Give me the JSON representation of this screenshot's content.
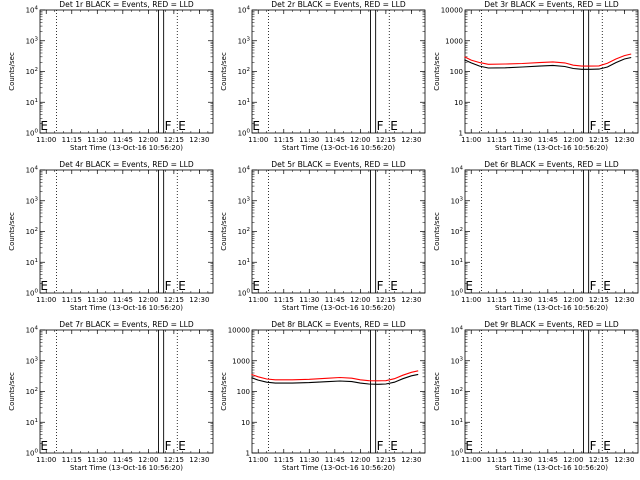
{
  "chart_data": [
    {
      "type": "line",
      "detector": "Det 1r",
      "title": "Det 1r BLACK = Events, RED = LLD",
      "xlabel": "Start Time (13-Oct-16 10:56:20)",
      "ylabel": "Counts/sec",
      "xlim": [
        "10:56:20",
        "12:38:00"
      ],
      "ylim": [
        1,
        10000
      ],
      "yscale": "log",
      "xticks": [
        "11:00",
        "11:15",
        "11:30",
        "11:45",
        "12:00",
        "12:15",
        "12:30"
      ],
      "yticks": [
        "10^0",
        "10^1",
        "10^2",
        "10^3",
        "10^4"
      ],
      "vlines_dotted": [
        "11:06",
        "12:17"
      ],
      "vlines_solid": [
        "12:06",
        "12:09"
      ],
      "markers": [
        {
          "text": "E",
          "x": "10:56"
        },
        {
          "text": "F",
          "x": "12:09"
        },
        {
          "text": "E",
          "x": "12:17"
        }
      ],
      "series": []
    },
    {
      "type": "line",
      "detector": "Det 2r",
      "title": "Det 2r BLACK = Events, RED = LLD",
      "xlabel": "Start Time (13-Oct-16 10:56:20)",
      "ylabel": "Counts/sec",
      "xlim": [
        "10:56:20",
        "12:38:00"
      ],
      "ylim": [
        1,
        10000
      ],
      "yscale": "log",
      "xticks": [
        "11:00",
        "11:15",
        "11:30",
        "11:45",
        "12:00",
        "12:15",
        "12:30"
      ],
      "yticks": [
        "10^0",
        "10^1",
        "10^2",
        "10^3",
        "10^4"
      ],
      "vlines_dotted": [
        "11:06",
        "12:17"
      ],
      "vlines_solid": [
        "12:06",
        "12:09"
      ],
      "markers": [
        {
          "text": "E",
          "x": "10:56"
        },
        {
          "text": "F",
          "x": "12:09"
        },
        {
          "text": "E",
          "x": "12:17"
        }
      ],
      "series": []
    },
    {
      "type": "line",
      "detector": "Det 3r",
      "title": "Det 3r BLACK = Events, RED = LLD",
      "xlabel": "Start Time (13-Oct-16 10:56:20)",
      "ylabel": "Counts/sec",
      "xlim": [
        "10:56:20",
        "12:38:00"
      ],
      "ylim": [
        1,
        10000
      ],
      "yscale": "log",
      "xticks": [
        "11:00",
        "11:15",
        "11:30",
        "11:45",
        "12:00",
        "12:15",
        "12:30"
      ],
      "yticks": [
        "1",
        "10",
        "100",
        "1000",
        "10000"
      ],
      "vlines_dotted": [
        "11:06",
        "12:17"
      ],
      "vlines_solid": [
        "12:06",
        "12:09"
      ],
      "markers": [
        {
          "text": "F",
          "x": "12:09"
        },
        {
          "text": "E",
          "x": "12:17"
        }
      ],
      "series": [
        {
          "color": "#ff0000",
          "x": [
            "10:56",
            "11:00",
            "11:05",
            "11:10",
            "11:20",
            "11:30",
            "11:40",
            "11:48",
            "11:55",
            "12:00",
            "12:05",
            "12:10",
            "12:15",
            "12:20",
            "12:25",
            "12:30",
            "12:34"
          ],
          "y": [
            300,
            235,
            195,
            172,
            175,
            182,
            195,
            205,
            190,
            160,
            150,
            150,
            152,
            185,
            255,
            330,
            370
          ]
        },
        {
          "color": "#000000",
          "x": [
            "10:56",
            "11:00",
            "11:05",
            "11:10",
            "11:20",
            "11:30",
            "11:40",
            "11:48",
            "11:55",
            "12:00",
            "12:05",
            "12:10",
            "12:15",
            "12:20",
            "12:25",
            "12:30",
            "12:34"
          ],
          "y": [
            240,
            190,
            150,
            130,
            132,
            140,
            150,
            158,
            145,
            125,
            118,
            118,
            120,
            140,
            195,
            255,
            285
          ]
        }
      ]
    },
    {
      "type": "line",
      "detector": "Det 4r",
      "title": "Det 4r BLACK = Events, RED = LLD",
      "xlabel": "Start Time (13-Oct-16 10:56:20)",
      "ylabel": "Counts/sec",
      "xlim": [
        "10:56:20",
        "12:38:00"
      ],
      "ylim": [
        1,
        10000
      ],
      "yscale": "log",
      "xticks": [
        "11:00",
        "11:15",
        "11:30",
        "11:45",
        "12:00",
        "12:15",
        "12:30"
      ],
      "yticks": [
        "10^0",
        "10^1",
        "10^2",
        "10^3",
        "10^4"
      ],
      "vlines_dotted": [
        "11:06",
        "12:17"
      ],
      "vlines_solid": [
        "12:06",
        "12:09"
      ],
      "markers": [
        {
          "text": "E",
          "x": "10:56"
        },
        {
          "text": "F",
          "x": "12:09"
        },
        {
          "text": "E",
          "x": "12:17"
        }
      ],
      "series": []
    },
    {
      "type": "line",
      "detector": "Det 5r",
      "title": "Det 5r BLACK = Events, RED = LLD",
      "xlabel": "Start Time (13-Oct-16 10:56:20)",
      "ylabel": "Counts/sec",
      "xlim": [
        "10:56:20",
        "12:38:00"
      ],
      "ylim": [
        1,
        10000
      ],
      "yscale": "log",
      "xticks": [
        "11:00",
        "11:15",
        "11:30",
        "11:45",
        "12:00",
        "12:15",
        "12:30"
      ],
      "yticks": [
        "10^0",
        "10^1",
        "10^2",
        "10^3",
        "10^4"
      ],
      "vlines_dotted": [
        "11:06",
        "12:17"
      ],
      "vlines_solid": [
        "12:06",
        "12:09"
      ],
      "markers": [
        {
          "text": "E",
          "x": "10:56"
        },
        {
          "text": "F",
          "x": "12:09"
        },
        {
          "text": "E",
          "x": "12:17"
        }
      ],
      "series": []
    },
    {
      "type": "line",
      "detector": "Det 6r",
      "title": "Det 6r BLACK = Events, RED = LLD",
      "xlabel": "Start Time (13-Oct-16 10:56:20)",
      "ylabel": "Counts/sec",
      "xlim": [
        "10:56:20",
        "12:38:00"
      ],
      "ylim": [
        1,
        10000
      ],
      "yscale": "log",
      "xticks": [
        "11:00",
        "11:15",
        "11:30",
        "11:45",
        "12:00",
        "12:15",
        "12:30"
      ],
      "yticks": [
        "10^0",
        "10^1",
        "10^2",
        "10^3",
        "10^4"
      ],
      "vlines_dotted": [
        "11:06",
        "12:17"
      ],
      "vlines_solid": [
        "12:06",
        "12:09"
      ],
      "markers": [
        {
          "text": "E",
          "x": "10:56"
        },
        {
          "text": "F",
          "x": "12:09"
        },
        {
          "text": "E",
          "x": "12:17"
        }
      ],
      "series": []
    },
    {
      "type": "line",
      "detector": "Det 7r",
      "title": "Det 7r BLACK = Events, RED = LLD",
      "xlabel": "Start Time (13-Oct-16 10:56:20)",
      "ylabel": "Counts/sec",
      "xlim": [
        "10:56:20",
        "12:38:00"
      ],
      "ylim": [
        1,
        10000
      ],
      "yscale": "log",
      "xticks": [
        "11:00",
        "11:15",
        "11:30",
        "11:45",
        "12:00",
        "12:15",
        "12:30"
      ],
      "yticks": [
        "10^0",
        "10^1",
        "10^2",
        "10^3",
        "10^4"
      ],
      "vlines_dotted": [
        "11:06",
        "12:17"
      ],
      "vlines_solid": [
        "12:06",
        "12:09"
      ],
      "markers": [
        {
          "text": "E",
          "x": "10:56"
        },
        {
          "text": "F",
          "x": "12:09"
        },
        {
          "text": "E",
          "x": "12:17"
        }
      ],
      "series": []
    },
    {
      "type": "line",
      "detector": "Det 8r",
      "title": "Det 8r BLACK = Events, RED = LLD",
      "xlabel": "Start Time (13-Oct-16 10:56:20)",
      "ylabel": "Counts/sec",
      "xlim": [
        "10:56:20",
        "12:38:00"
      ],
      "ylim": [
        1,
        10000
      ],
      "yscale": "log",
      "xticks": [
        "11:00",
        "11:15",
        "11:30",
        "11:45",
        "12:00",
        "12:15",
        "12:30"
      ],
      "yticks": [
        "1",
        "10",
        "100",
        "1000",
        "10000"
      ],
      "vlines_dotted": [
        "11:06",
        "12:17"
      ],
      "vlines_solid": [
        "12:06",
        "12:09"
      ],
      "markers": [
        {
          "text": "F",
          "x": "12:09"
        },
        {
          "text": "E",
          "x": "12:17"
        }
      ],
      "series": [
        {
          "color": "#ff0000",
          "x": [
            "10:56",
            "11:00",
            "11:05",
            "11:10",
            "11:20",
            "11:30",
            "11:40",
            "11:48",
            "11:55",
            "12:00",
            "12:05",
            "12:10",
            "12:15",
            "12:20",
            "12:25",
            "12:30",
            "12:34"
          ],
          "y": [
            360,
            300,
            255,
            240,
            240,
            250,
            268,
            285,
            270,
            240,
            225,
            222,
            225,
            260,
            340,
            420,
            470
          ]
        },
        {
          "color": "#000000",
          "x": [
            "10:56",
            "11:00",
            "11:05",
            "11:10",
            "11:20",
            "11:30",
            "11:40",
            "11:48",
            "11:55",
            "12:00",
            "12:05",
            "12:10",
            "12:15",
            "12:20",
            "12:25",
            "12:30",
            "12:34"
          ],
          "y": [
            280,
            235,
            200,
            188,
            188,
            195,
            208,
            220,
            210,
            188,
            175,
            172,
            175,
            200,
            260,
            325,
            360
          ]
        }
      ]
    },
    {
      "type": "line",
      "detector": "Det 9r",
      "title": "Det 9r BLACK = Events, RED = LLD",
      "xlabel": "Start Time (13-Oct-16 10:56:20)",
      "ylabel": "Counts/sec",
      "xlim": [
        "10:56:20",
        "12:38:00"
      ],
      "ylim": [
        1,
        10000
      ],
      "yscale": "log",
      "xticks": [
        "11:00",
        "11:15",
        "11:30",
        "11:45",
        "12:00",
        "12:15",
        "12:30"
      ],
      "yticks": [
        "10^0",
        "10^1",
        "10^2",
        "10^3",
        "10^4"
      ],
      "vlines_dotted": [
        "11:06",
        "12:17"
      ],
      "vlines_solid": [
        "12:06",
        "12:09"
      ],
      "markers": [
        {
          "text": "E",
          "x": "10:56"
        },
        {
          "text": "F",
          "x": "12:09"
        },
        {
          "text": "E",
          "x": "12:17"
        }
      ],
      "series": []
    }
  ]
}
